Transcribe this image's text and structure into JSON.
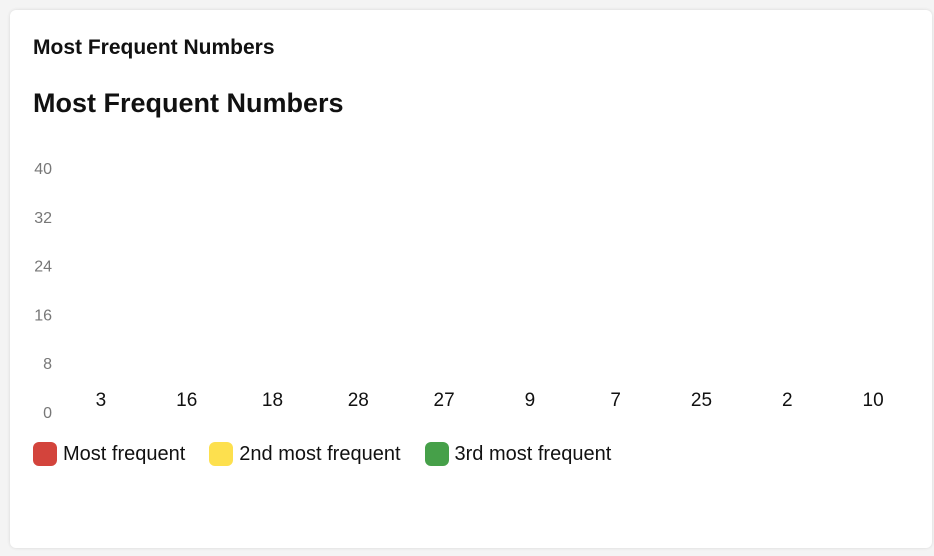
{
  "card": {
    "title": "Most Frequent Numbers"
  },
  "chart_data": {
    "type": "bar",
    "title": "Most Frequent Numbers",
    "categories": [
      "3",
      "16",
      "18",
      "28",
      "27",
      "9",
      "7",
      "25",
      "2",
      "10"
    ],
    "values": [
      0,
      0,
      0,
      0,
      0,
      0,
      0,
      0,
      0,
      0
    ],
    "yticks": [
      "0",
      "8",
      "16",
      "24",
      "32",
      "40"
    ],
    "ylim": [
      0,
      40
    ],
    "grid": false,
    "legend_position": "bottom-left",
    "legend": [
      {
        "label": "Most frequent",
        "color": "#d3443c"
      },
      {
        "label": "2nd most frequent",
        "color": "#fde04e"
      },
      {
        "label": "3rd most frequent",
        "color": "#46a049"
      }
    ]
  }
}
